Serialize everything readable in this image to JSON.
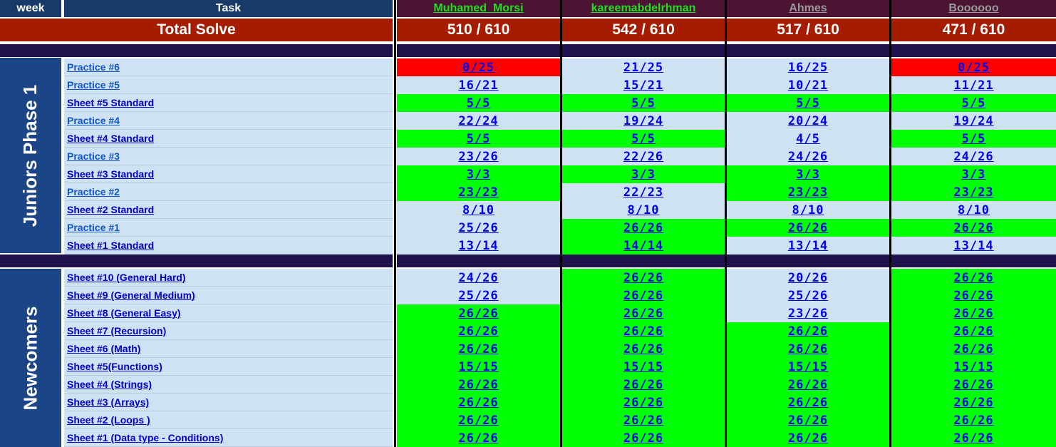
{
  "header": {
    "week_label": "week",
    "task_label": "Task",
    "users": [
      {
        "name": "Muhamed_Morsi",
        "color": "#22dd22"
      },
      {
        "name": "kareemabdelrhman",
        "color": "#22dd22"
      },
      {
        "name": "Ahmes",
        "color": "#999999"
      },
      {
        "name": "Boooooo",
        "color": "#999999"
      }
    ]
  },
  "total": {
    "label": "Total Solve",
    "scores": [
      "510 / 610",
      "542 / 610",
      "517 / 610",
      "471 / 610"
    ]
  },
  "colors": {
    "green": "#00ff00",
    "red": "#ff0000",
    "light_blue": "#cfe2f3",
    "header_navy": "#173b66",
    "user_header": "#4b1433",
    "total_bg": "#a61c00",
    "separator": "#20124d",
    "week_bg": "#1c4587"
  },
  "sections": [
    {
      "name": "Juniors Phase 1",
      "rows": [
        {
          "task": "Practice #6",
          "kind": "practice",
          "scores": [
            "0/25",
            "21/25",
            "16/25",
            "0/25"
          ],
          "status": [
            "red",
            "blue",
            "blue",
            "red"
          ]
        },
        {
          "task": "Practice #5",
          "kind": "practice",
          "scores": [
            "16/21",
            "15/21",
            "10/21",
            "11/21"
          ],
          "status": [
            "blue",
            "blue",
            "blue",
            "blue"
          ]
        },
        {
          "task": "Sheet #5 Standard",
          "kind": "sheet",
          "scores": [
            "5/5",
            "5/5",
            "5/5",
            "5/5"
          ],
          "status": [
            "green",
            "green",
            "green",
            "green"
          ]
        },
        {
          "task": "Practice #4",
          "kind": "practice",
          "scores": [
            "22/24",
            "19/24",
            "20/24",
            "19/24"
          ],
          "status": [
            "blue",
            "blue",
            "blue",
            "blue"
          ]
        },
        {
          "task": "Sheet #4 Standard",
          "kind": "sheet",
          "scores": [
            "5/5",
            "5/5",
            "4/5",
            "5/5"
          ],
          "status": [
            "green",
            "green",
            "blue",
            "green"
          ]
        },
        {
          "task": "Practice #3",
          "kind": "practice",
          "scores": [
            "23/26",
            "22/26",
            "24/26",
            "24/26"
          ],
          "status": [
            "blue",
            "blue",
            "blue",
            "blue"
          ]
        },
        {
          "task": "Sheet #3 Standard",
          "kind": "sheet",
          "scores": [
            "3/3",
            "3/3",
            "3/3",
            "3/3"
          ],
          "status": [
            "green",
            "green",
            "green",
            "green"
          ]
        },
        {
          "task": "Practice #2",
          "kind": "practice",
          "scores": [
            "23/23",
            "22/23",
            "23/23",
            "23/23"
          ],
          "status": [
            "green",
            "blue",
            "green",
            "green"
          ]
        },
        {
          "task": "Sheet #2 Standard",
          "kind": "sheet",
          "scores": [
            "8/10",
            "8/10",
            "8/10",
            "8/10"
          ],
          "status": [
            "blue",
            "blue",
            "blue",
            "blue"
          ]
        },
        {
          "task": "Practice #1",
          "kind": "practice",
          "scores": [
            "25/26",
            "26/26",
            "26/26",
            "26/26"
          ],
          "status": [
            "blue",
            "green",
            "green",
            "green"
          ]
        },
        {
          "task": "Sheet #1 Standard",
          "kind": "sheet",
          "scores": [
            "13/14",
            "14/14",
            "13/14",
            "13/14"
          ],
          "status": [
            "blue",
            "green",
            "blue",
            "blue"
          ]
        }
      ]
    },
    {
      "name": "Newcomers",
      "rows": [
        {
          "task": "Sheet #10 (General Hard)",
          "kind": "sheet",
          "scores": [
            "24/26",
            "26/26",
            "20/26",
            "26/26"
          ],
          "status": [
            "blue",
            "green",
            "blue",
            "green"
          ]
        },
        {
          "task": "Sheet #9 (General Medium)",
          "kind": "sheet",
          "scores": [
            "25/26",
            "26/26",
            "25/26",
            "26/26"
          ],
          "status": [
            "blue",
            "green",
            "blue",
            "green"
          ]
        },
        {
          "task": "Sheet #8 (General Easy)",
          "kind": "sheet",
          "scores": [
            "26/26",
            "26/26",
            "23/26",
            "26/26"
          ],
          "status": [
            "green",
            "green",
            "blue",
            "green"
          ]
        },
        {
          "task": "Sheet #7 (Recursion)",
          "kind": "sheet",
          "scores": [
            "26/26",
            "26/26",
            "26/26",
            "26/26"
          ],
          "status": [
            "green",
            "green",
            "green",
            "green"
          ]
        },
        {
          "task": "Sheet #6 (Math)",
          "kind": "sheet",
          "scores": [
            "26/26",
            "26/26",
            "26/26",
            "26/26"
          ],
          "status": [
            "green",
            "green",
            "green",
            "green"
          ]
        },
        {
          "task": "Sheet #5(Functions)",
          "kind": "sheet",
          "scores": [
            "15/15",
            "15/15",
            "15/15",
            "15/15"
          ],
          "status": [
            "green",
            "green",
            "green",
            "green"
          ]
        },
        {
          "task": "Sheet #4 (Strings)",
          "kind": "sheet",
          "scores": [
            "26/26",
            "26/26",
            "26/26",
            "26/26"
          ],
          "status": [
            "green",
            "green",
            "green",
            "green"
          ]
        },
        {
          "task": "Sheet #3 (Arrays)",
          "kind": "sheet",
          "scores": [
            "26/26",
            "26/26",
            "26/26",
            "26/26"
          ],
          "status": [
            "green",
            "green",
            "green",
            "green"
          ]
        },
        {
          "task": "Sheet #2 (Loops )",
          "kind": "sheet",
          "scores": [
            "26/26",
            "26/26",
            "26/26",
            "26/26"
          ],
          "status": [
            "green",
            "green",
            "green",
            "green"
          ]
        },
        {
          "task": "Sheet #1 (Data type - Conditions)",
          "kind": "sheet",
          "scores": [
            "26/26",
            "26/26",
            "26/26",
            "26/26"
          ],
          "status": [
            "green",
            "green",
            "green",
            "green"
          ]
        }
      ]
    }
  ]
}
